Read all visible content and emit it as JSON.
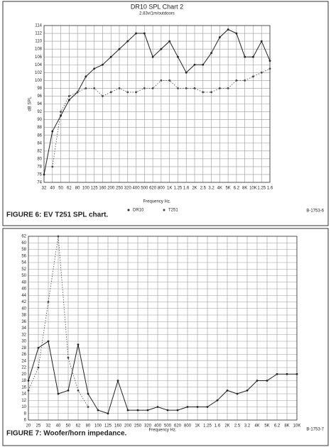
{
  "chart_data": [
    {
      "type": "line",
      "title": "DR10 SPL Chart 2",
      "subtitle": "2.83v/1m/outdoors",
      "y_label": "dB SPL",
      "x_label": "Frequency Hz.",
      "caption": "FIGURE 6: EV T251 SPL chart.",
      "code": "B-1753-6",
      "categories": [
        "32",
        "40",
        "50",
        "62",
        "80",
        "100",
        "125",
        "160",
        "200",
        "250",
        "320",
        "400",
        "500",
        "620",
        "800",
        "1K",
        "1.25",
        "1.6",
        "2K",
        "2.5",
        "3.2",
        "4K",
        "5K",
        "6.2",
        "8K",
        "10K",
        "1.25",
        "1.6"
      ],
      "series": [
        {
          "name": "DR10",
          "color": "#222222",
          "dash": "solid",
          "values": [
            76,
            87,
            91,
            95,
            97,
            101,
            103,
            104,
            106,
            108,
            110,
            112,
            112,
            106,
            108,
            110,
            106,
            102,
            104,
            104,
            107,
            111,
            113,
            112,
            106,
            106,
            110,
            105
          ]
        },
        {
          "name": "T251",
          "color": "#444444",
          "dash": "dotted",
          "values": [
            null,
            78,
            92,
            96,
            97,
            98,
            98,
            96,
            97,
            98,
            97,
            97,
            98,
            98,
            100,
            100,
            98,
            98,
            98,
            97,
            97,
            98,
            98,
            100,
            100,
            101,
            102,
            103
          ]
        }
      ],
      "ylim": [
        74,
        114
      ],
      "yticks": [
        74,
        76,
        78,
        80,
        82,
        84,
        86,
        88,
        90,
        92,
        94,
        96,
        98,
        100,
        102,
        104,
        106,
        108,
        110,
        112,
        114
      ],
      "grid": true,
      "legend": "bottom"
    },
    {
      "type": "line",
      "x_label": "Frequency Hz.",
      "caption": "FIGURE 7: Woofer/horn impedance.",
      "code": "B-1753-7",
      "categories": [
        "20",
        "25",
        "32",
        "40",
        "50",
        "62",
        "80",
        "100",
        "125",
        "160",
        "200",
        "250",
        "320",
        "400",
        "500",
        "620",
        "800",
        "1K",
        "1.25",
        "1.6",
        "2K",
        "2.5",
        "3.2",
        "4K",
        "5K",
        "6.2",
        "8K",
        "10K"
      ],
      "series": [
        {
          "color": "#222222",
          "dash": "solid",
          "values": [
            18,
            28,
            30,
            14,
            15,
            29,
            14,
            9,
            8,
            18,
            9,
            9,
            9,
            10,
            9,
            9,
            10,
            10,
            10,
            12,
            15,
            14,
            15,
            18,
            18,
            20,
            20,
            20
          ]
        },
        {
          "color": "#444444",
          "dash": "dotted",
          "values": [
            15,
            22,
            42,
            62,
            25,
            15,
            10,
            null,
            null,
            null,
            null,
            null,
            null,
            null,
            null,
            null,
            null,
            null,
            null,
            null,
            null,
            null,
            null,
            null,
            null,
            null,
            null,
            null
          ]
        }
      ],
      "ylim": [
        6,
        62
      ],
      "yticks": [
        6,
        8,
        10,
        12,
        14,
        16,
        18,
        20,
        22,
        24,
        26,
        28,
        30,
        32,
        34,
        36,
        38,
        40,
        42,
        44,
        46,
        48,
        50,
        52,
        54,
        56,
        58,
        60,
        62
      ],
      "grid": true
    }
  ]
}
